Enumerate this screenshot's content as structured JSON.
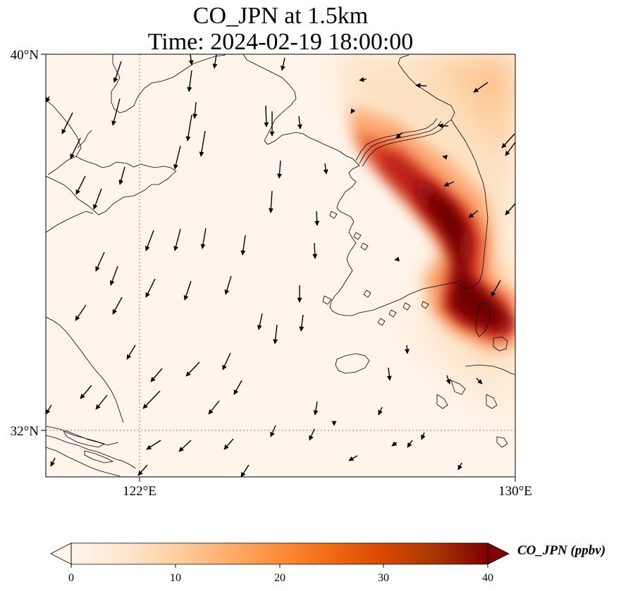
{
  "title": {
    "line1": "CO_JPN at 1.5km",
    "line2": "Time: 2024-02-19 18:00:00"
  },
  "axes": {
    "lat_labels": [
      "40°N",
      "32°N"
    ],
    "lon_labels": [
      "122°E",
      "130°E"
    ],
    "lat_range": [
      31,
      40
    ],
    "lon_range": [
      120,
      130
    ],
    "gridlines": {
      "lat": 32,
      "lon": 122
    }
  },
  "colorbar": {
    "label": "CO_JPN (ppbv)",
    "ticks": [
      "0",
      "10",
      "20",
      "30",
      "40"
    ],
    "range": [
      0,
      40
    ],
    "extend": "both",
    "colors": [
      "#fff5eb",
      "#fee6ce",
      "#fdd0a2",
      "#fdae6b",
      "#fd8d3c",
      "#f16913",
      "#d94801",
      "#a63603",
      "#7f0000"
    ]
  },
  "map": {
    "background_color": "#fff5eb",
    "coastline_color": "#000000",
    "arrow_color": "#000000"
  }
}
